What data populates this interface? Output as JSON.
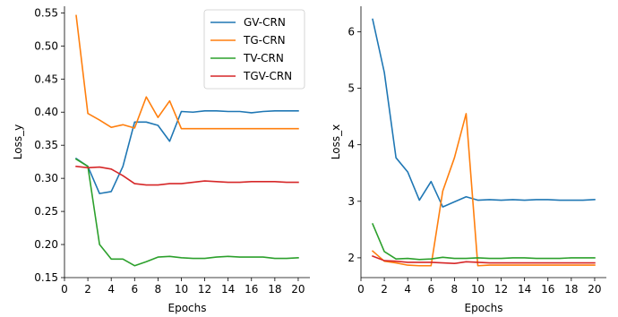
{
  "chart_data": [
    {
      "type": "line",
      "xlabel": "Epochs",
      "ylabel": "Loss_y",
      "xlim": [
        0,
        21
      ],
      "ylim": [
        0.15,
        0.56
      ],
      "xticks": [
        0,
        2,
        4,
        6,
        8,
        10,
        12,
        14,
        16,
        18,
        20
      ],
      "yticks": [
        0.15,
        0.2,
        0.25,
        0.3,
        0.35,
        0.4,
        0.45,
        0.5,
        0.55
      ],
      "ytick_labels": [
        "0.15",
        "0.20",
        "0.25",
        "0.30",
        "0.35",
        "0.40",
        "0.45",
        "0.50",
        "0.55"
      ],
      "legend": "top-right",
      "x": [
        1,
        2,
        3,
        4,
        5,
        6,
        7,
        8,
        9,
        10,
        11,
        12,
        13,
        14,
        15,
        16,
        17,
        18,
        19,
        20
      ],
      "series": [
        {
          "name": "GV-CRN",
          "color": "#1f77b4",
          "values": [
            0.33,
            0.318,
            0.277,
            0.28,
            0.318,
            0.385,
            0.385,
            0.38,
            0.356,
            0.401,
            0.4,
            0.402,
            0.402,
            0.401,
            0.401,
            0.399,
            0.401,
            0.402,
            0.402,
            0.402
          ]
        },
        {
          "name": "TG-CRN",
          "color": "#ff7f0e",
          "values": [
            0.546,
            0.398,
            0.388,
            0.377,
            0.381,
            0.376,
            0.423,
            0.392,
            0.417,
            0.375,
            0.375,
            0.375,
            0.375,
            0.375,
            0.375,
            0.375,
            0.375,
            0.375,
            0.375,
            0.375
          ]
        },
        {
          "name": "TV-CRN",
          "color": "#2ca02c",
          "values": [
            0.329,
            0.318,
            0.2,
            0.178,
            0.178,
            0.168,
            0.174,
            0.181,
            0.182,
            0.18,
            0.179,
            0.179,
            0.181,
            0.182,
            0.181,
            0.181,
            0.181,
            0.179,
            0.179,
            0.18
          ]
        },
        {
          "name": "TGV-CRN",
          "color": "#d62728",
          "values": [
            0.318,
            0.316,
            0.317,
            0.314,
            0.304,
            0.292,
            0.29,
            0.29,
            0.292,
            0.292,
            0.294,
            0.296,
            0.295,
            0.294,
            0.294,
            0.295,
            0.295,
            0.295,
            0.294,
            0.294
          ]
        }
      ]
    },
    {
      "type": "line",
      "xlabel": "Epochs",
      "ylabel": "Loss_x",
      "xlim": [
        0,
        21
      ],
      "ylim": [
        1.65,
        6.45
      ],
      "xticks": [
        0,
        2,
        4,
        6,
        8,
        10,
        12,
        14,
        16,
        18,
        20
      ],
      "yticks": [
        2,
        3,
        4,
        5,
        6
      ],
      "ytick_labels": [
        "2",
        "3",
        "4",
        "5",
        "6"
      ],
      "x": [
        1,
        2,
        3,
        4,
        5,
        6,
        7,
        8,
        9,
        10,
        11,
        12,
        13,
        14,
        15,
        16,
        17,
        18,
        19,
        20
      ],
      "series": [
        {
          "name": "GV-CRN",
          "color": "#1f77b4",
          "values": [
            6.22,
            5.28,
            3.77,
            3.52,
            3.02,
            3.35,
            2.9,
            2.99,
            3.08,
            3.02,
            3.03,
            3.02,
            3.03,
            3.02,
            3.03,
            3.03,
            3.02,
            3.02,
            3.02,
            3.03
          ]
        },
        {
          "name": "TG-CRN",
          "color": "#ff7f0e",
          "values": [
            2.12,
            1.94,
            1.91,
            1.87,
            1.86,
            1.86,
            3.18,
            3.77,
            4.55,
            1.86,
            1.87,
            1.87,
            1.87,
            1.87,
            1.87,
            1.87,
            1.87,
            1.87,
            1.87,
            1.87
          ]
        },
        {
          "name": "TV-CRN",
          "color": "#2ca02c",
          "values": [
            2.6,
            2.11,
            1.98,
            1.99,
            1.97,
            1.98,
            2.01,
            1.99,
            1.99,
            2.0,
            1.99,
            1.99,
            2.0,
            2.0,
            1.99,
            1.99,
            1.99,
            2.0,
            2.0,
            2.0
          ]
        },
        {
          "name": "TGV-CRN",
          "color": "#d62728",
          "values": [
            2.03,
            1.95,
            1.94,
            1.92,
            1.92,
            1.92,
            1.91,
            1.9,
            1.93,
            1.92,
            1.91,
            1.91,
            1.91,
            1.91,
            1.91,
            1.91,
            1.91,
            1.91,
            1.91,
            1.91
          ]
        }
      ]
    }
  ]
}
